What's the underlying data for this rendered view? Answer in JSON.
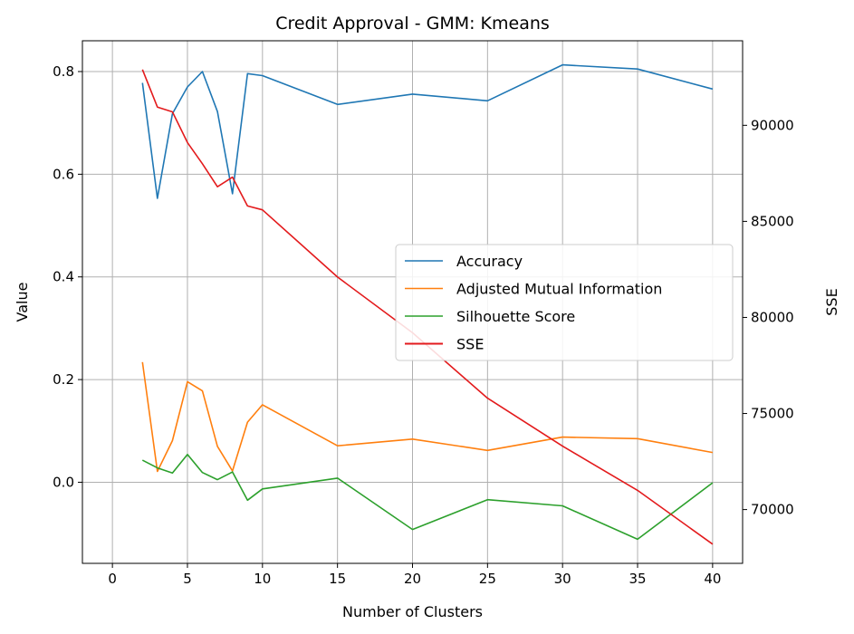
{
  "chart_data": {
    "type": "line",
    "title": "Credit Approval - GMM: Kmeans",
    "xlabel": "Number of Clusters",
    "ylabel": "Value",
    "y2label": "SSE",
    "xlim": [
      -2,
      42
    ],
    "ylim": [
      -0.158,
      0.86
    ],
    "y2lim": [
      67200,
      94400
    ],
    "xticks": [
      0,
      5,
      10,
      15,
      20,
      25,
      30,
      35,
      40
    ],
    "yticks": [
      0.0,
      0.2,
      0.4,
      0.6,
      0.8
    ],
    "ytick_labels": [
      "0.0",
      "0.2",
      "0.4",
      "0.6",
      "0.8"
    ],
    "y2ticks": [
      70000,
      75000,
      80000,
      85000,
      90000
    ],
    "y2tick_labels": [
      "70000",
      "75000",
      "80000",
      "85000",
      "90000"
    ],
    "grid": true,
    "legend_position": "center-right",
    "x": [
      2,
      3,
      4,
      5,
      6,
      7,
      8,
      9,
      10,
      15,
      20,
      25,
      30,
      35,
      40
    ],
    "series": [
      {
        "name": "Accuracy",
        "color": "#1f77b4",
        "axis": "left",
        "values": [
          0.778,
          0.553,
          0.718,
          0.77,
          0.8,
          0.722,
          0.562,
          0.796,
          0.792,
          0.736,
          0.756,
          0.743,
          0.813,
          0.805,
          0.766
        ]
      },
      {
        "name": "Adjusted Mutual Information",
        "color": "#ff7f0e",
        "axis": "left",
        "values": [
          0.234,
          0.021,
          0.081,
          0.196,
          0.178,
          0.07,
          0.022,
          0.117,
          0.151,
          0.071,
          0.084,
          0.062,
          0.088,
          0.085,
          0.058
        ]
      },
      {
        "name": "Silhouette Score",
        "color": "#2ca02c",
        "axis": "left",
        "values": [
          0.043,
          0.028,
          0.018,
          0.054,
          0.019,
          0.005,
          0.02,
          -0.035,
          -0.013,
          0.008,
          -0.092,
          -0.034,
          -0.046,
          -0.111,
          -0.001
        ]
      },
      {
        "name": "SSE",
        "color": "#e31a1c",
        "axis": "right",
        "values": [
          92900,
          90950,
          90700,
          89100,
          88000,
          86800,
          87300,
          85800,
          85600,
          82100,
          79200,
          75800,
          73300,
          71000,
          68200
        ]
      }
    ]
  }
}
